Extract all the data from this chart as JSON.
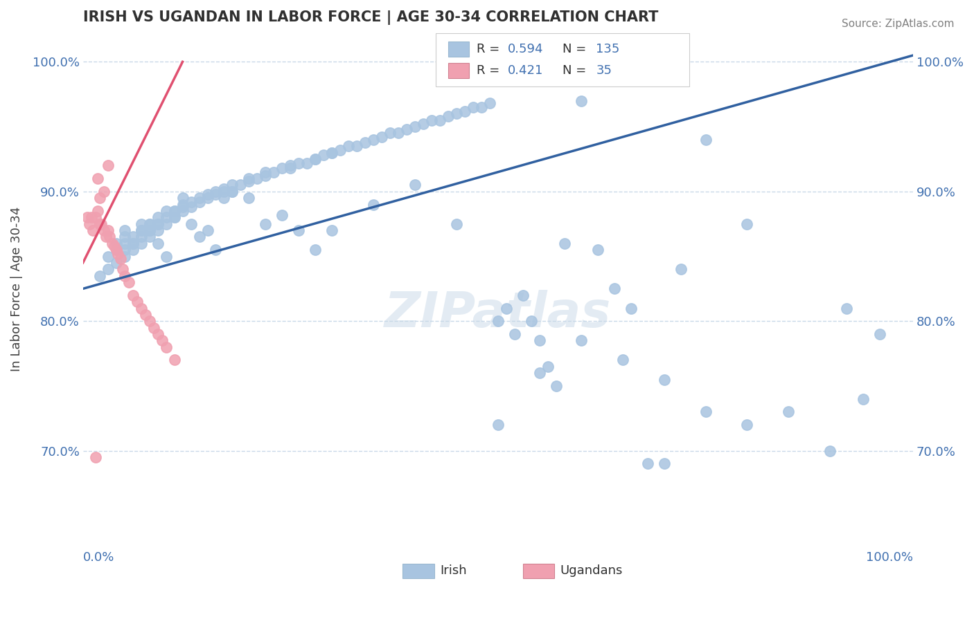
{
  "title": "IRISH VS UGANDAN IN LABOR FORCE | AGE 30-34 CORRELATION CHART",
  "source": "Source: ZipAtlas.com",
  "ylabel": "In Labor Force | Age 30-34",
  "xlim": [
    0.0,
    1.0
  ],
  "ylim": [
    0.63,
    1.02
  ],
  "yticks": [
    0.7,
    0.8,
    0.9,
    1.0
  ],
  "ytick_labels": [
    "70.0%",
    "80.0%",
    "90.0%",
    "100.0%"
  ],
  "irish_R": 0.594,
  "irish_N": 135,
  "ugandan_R": 0.421,
  "ugandan_N": 35,
  "irish_color": "#a8c4e0",
  "irish_line_color": "#3060a0",
  "ugandan_color": "#f0a0b0",
  "ugandan_line_color": "#e05070",
  "watermark": "ZIPatlas",
  "background_color": "#ffffff",
  "grid_color": "#c8d8e8",
  "title_color": "#303030",
  "axis_label_color": "#4070b0",
  "irish_scatter_x": [
    0.02,
    0.03,
    0.03,
    0.04,
    0.04,
    0.04,
    0.05,
    0.05,
    0.05,
    0.05,
    0.06,
    0.06,
    0.06,
    0.07,
    0.07,
    0.07,
    0.07,
    0.08,
    0.08,
    0.08,
    0.08,
    0.09,
    0.09,
    0.09,
    0.09,
    0.1,
    0.1,
    0.1,
    0.11,
    0.11,
    0.11,
    0.12,
    0.12,
    0.12,
    0.13,
    0.13,
    0.14,
    0.14,
    0.15,
    0.15,
    0.16,
    0.16,
    0.17,
    0.17,
    0.18,
    0.18,
    0.19,
    0.2,
    0.2,
    0.21,
    0.22,
    0.22,
    0.23,
    0.24,
    0.25,
    0.25,
    0.26,
    0.27,
    0.28,
    0.28,
    0.29,
    0.3,
    0.3,
    0.31,
    0.32,
    0.33,
    0.34,
    0.35,
    0.36,
    0.37,
    0.38,
    0.39,
    0.4,
    0.41,
    0.42,
    0.43,
    0.44,
    0.45,
    0.46,
    0.47,
    0.48,
    0.49,
    0.5,
    0.51,
    0.52,
    0.53,
    0.54,
    0.55,
    0.56,
    0.57,
    0.58,
    0.6,
    0.62,
    0.64,
    0.66,
    0.68,
    0.7,
    0.72,
    0.75,
    0.8,
    0.05,
    0.06,
    0.07,
    0.08,
    0.09,
    0.1,
    0.11,
    0.12,
    0.13,
    0.14,
    0.15,
    0.16,
    0.17,
    0.18,
    0.2,
    0.22,
    0.24,
    0.26,
    0.28,
    0.3,
    0.35,
    0.4,
    0.45,
    0.5,
    0.55,
    0.6,
    0.65,
    0.7,
    0.75,
    0.8,
    0.85,
    0.9,
    0.92,
    0.94,
    0.96
  ],
  "irish_scatter_y": [
    0.835,
    0.84,
    0.85,
    0.845,
    0.855,
    0.86,
    0.85,
    0.855,
    0.86,
    0.865,
    0.855,
    0.86,
    0.865,
    0.86,
    0.865,
    0.87,
    0.875,
    0.865,
    0.87,
    0.875,
    0.87,
    0.87,
    0.875,
    0.875,
    0.88,
    0.875,
    0.88,
    0.885,
    0.88,
    0.885,
    0.885,
    0.885,
    0.888,
    0.89,
    0.888,
    0.892,
    0.892,
    0.895,
    0.895,
    0.898,
    0.898,
    0.9,
    0.9,
    0.902,
    0.9,
    0.905,
    0.905,
    0.908,
    0.91,
    0.91,
    0.912,
    0.915,
    0.915,
    0.918,
    0.918,
    0.92,
    0.922,
    0.922,
    0.925,
    0.925,
    0.928,
    0.93,
    0.93,
    0.932,
    0.935,
    0.935,
    0.938,
    0.94,
    0.942,
    0.945,
    0.945,
    0.948,
    0.95,
    0.952,
    0.955,
    0.955,
    0.958,
    0.96,
    0.962,
    0.965,
    0.965,
    0.968,
    0.72,
    0.81,
    0.79,
    0.82,
    0.8,
    0.785,
    0.765,
    0.75,
    0.86,
    0.97,
    0.855,
    0.825,
    0.81,
    0.69,
    0.69,
    0.84,
    0.94,
    0.875,
    0.87,
    0.86,
    0.87,
    0.875,
    0.86,
    0.85,
    0.88,
    0.895,
    0.875,
    0.865,
    0.87,
    0.855,
    0.895,
    0.9,
    0.895,
    0.875,
    0.882,
    0.87,
    0.855,
    0.87,
    0.89,
    0.905,
    0.875,
    0.8,
    0.76,
    0.785,
    0.77,
    0.755,
    0.73,
    0.72,
    0.73,
    0.7,
    0.81,
    0.74,
    0.79
  ],
  "ugandan_scatter_x": [
    0.005,
    0.008,
    0.01,
    0.012,
    0.015,
    0.018,
    0.02,
    0.022,
    0.025,
    0.028,
    0.03,
    0.032,
    0.035,
    0.038,
    0.04,
    0.042,
    0.045,
    0.048,
    0.05,
    0.055,
    0.06,
    0.065,
    0.07,
    0.075,
    0.08,
    0.085,
    0.09,
    0.095,
    0.1,
    0.11,
    0.018,
    0.025,
    0.03,
    0.02,
    0.015
  ],
  "ugandan_scatter_y": [
    0.88,
    0.875,
    0.88,
    0.87,
    0.88,
    0.885,
    0.875,
    0.875,
    0.87,
    0.865,
    0.87,
    0.865,
    0.86,
    0.858,
    0.855,
    0.852,
    0.848,
    0.84,
    0.835,
    0.83,
    0.82,
    0.815,
    0.81,
    0.805,
    0.8,
    0.795,
    0.79,
    0.785,
    0.78,
    0.77,
    0.91,
    0.9,
    0.92,
    0.895,
    0.695
  ],
  "irish_trendline_x": [
    0.0,
    1.0
  ],
  "irish_trendline_y": [
    0.825,
    1.005
  ],
  "ugandan_trendline_x": [
    0.0,
    0.12
  ],
  "ugandan_trendline_y": [
    0.845,
    1.0
  ]
}
